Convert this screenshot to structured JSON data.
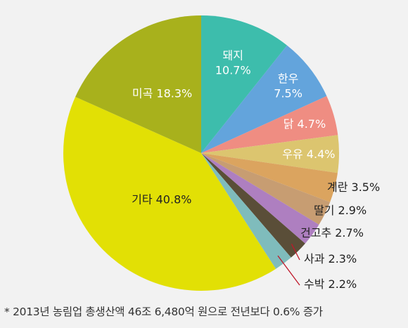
{
  "chart_data": {
    "type": "pie",
    "slices": [
      {
        "label": "돼지",
        "value": 10.7,
        "display": "10.7%",
        "color": "#3dbdac"
      },
      {
        "label": "한우",
        "value": 7.5,
        "display": "7.5%",
        "color": "#63a4dc"
      },
      {
        "label": "닭",
        "value": 4.7,
        "display": "4.7%",
        "color": "#ef8d82"
      },
      {
        "label": "우유",
        "value": 4.4,
        "display": "4.4%",
        "color": "#dcc56f"
      },
      {
        "label": "계란",
        "value": 3.5,
        "display": "3.5%",
        "color": "#dba45f"
      },
      {
        "label": "딸기",
        "value": 2.9,
        "display": "2.9%",
        "color": "#c79d72"
      },
      {
        "label": "건고추",
        "value": 2.7,
        "display": "2.7%",
        "color": "#ae7fc0"
      },
      {
        "label": "사과",
        "value": 2.3,
        "display": "2.3%",
        "color": "#5a4e38"
      },
      {
        "label": "수박",
        "value": 2.2,
        "display": "2.2%",
        "color": "#7fbcbc"
      },
      {
        "label": "기타",
        "value": 40.8,
        "display": "40.8%",
        "color": "#e2e005"
      },
      {
        "label": "미곡",
        "value": 18.3,
        "display": "18.3%",
        "color": "#a8b11c"
      }
    ]
  },
  "footnote": "* 2013년 농림업 총생산액 46조 6,480억 원으로 전년보다 0.6% 증가"
}
